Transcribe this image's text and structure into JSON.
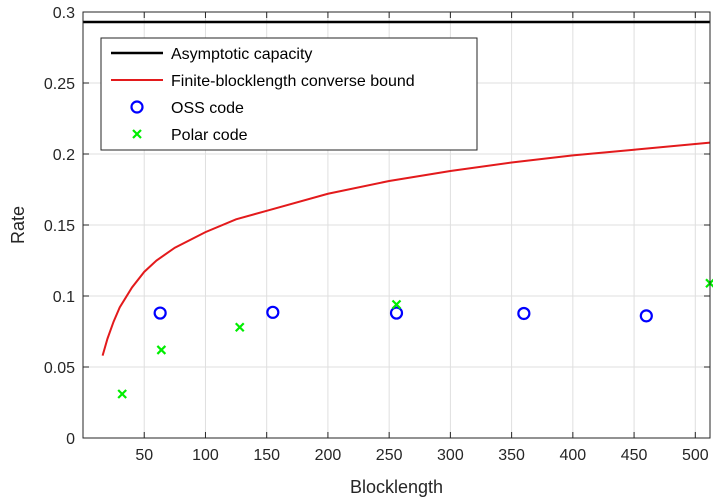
{
  "chart_data": {
    "type": "line",
    "xlabel": "Blocklength",
    "ylabel": "Rate",
    "xlim": [
      0,
      512
    ],
    "ylim": [
      0,
      0.3
    ],
    "x_ticks": [
      50,
      100,
      150,
      200,
      250,
      300,
      350,
      400,
      450,
      500
    ],
    "y_ticks": [
      0,
      0.05,
      0.1,
      0.15,
      0.2,
      0.25,
      0.3
    ],
    "x_tick_labels": [
      "50",
      "100",
      "150",
      "200",
      "250",
      "300",
      "350",
      "400",
      "450",
      "500"
    ],
    "y_tick_labels": [
      "0",
      "0.05",
      "0.1",
      "0.15",
      "0.2",
      "0.25",
      "0.3"
    ],
    "grid": true,
    "legend_position": "top-left",
    "series": [
      {
        "name": "Asymptotic capacity",
        "kind": "line",
        "color": "#000000",
        "x": [
          0,
          512
        ],
        "y": [
          0.293,
          0.293
        ]
      },
      {
        "name": "Finite-blocklength converse bound",
        "kind": "line",
        "color": "#e31a1c",
        "x": [
          16,
          20,
          25,
          30,
          40,
          50,
          60,
          75,
          100,
          125,
          150,
          200,
          250,
          300,
          350,
          400,
          450,
          512
        ],
        "y": [
          0.058,
          0.07,
          0.082,
          0.092,
          0.106,
          0.117,
          0.125,
          0.134,
          0.145,
          0.154,
          0.16,
          0.172,
          0.181,
          0.188,
          0.194,
          0.199,
          0.203,
          0.208
        ]
      },
      {
        "name": "OSS code",
        "kind": "marker-circle",
        "color": "#0000ff",
        "x": [
          63,
          155,
          256,
          360,
          460
        ],
        "y": [
          0.088,
          0.0885,
          0.088,
          0.0877,
          0.086
        ]
      },
      {
        "name": "Polar code",
        "kind": "marker-x",
        "color": "#00ee00",
        "x": [
          32,
          64,
          128,
          256,
          512
        ],
        "y": [
          0.031,
          0.062,
          0.078,
          0.094,
          0.109
        ]
      }
    ]
  }
}
